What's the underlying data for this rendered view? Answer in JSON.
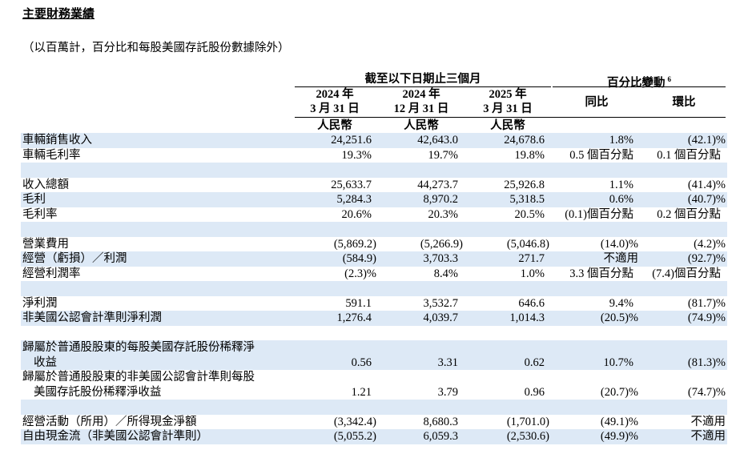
{
  "header": {
    "title": "主要財務業績",
    "subtitle": "（以百萬計，百分比和每股美國存託股份數據除外）"
  },
  "table": {
    "groups": [
      {
        "label": "截至以下日期止三個月"
      },
      {
        "label": "百分比變動",
        "note": "6"
      }
    ],
    "columns": [
      {
        "lines": [
          "2024 年",
          "3 月 31 日"
        ],
        "currency": "人民幣"
      },
      {
        "lines": [
          "2024 年",
          "12 月 31 日"
        ],
        "currency": "人民幣"
      },
      {
        "lines": [
          "2025 年",
          "3 月 31 日"
        ],
        "currency": "人民幣"
      },
      {
        "lines": [
          "同比"
        ]
      },
      {
        "lines": [
          "環比"
        ]
      }
    ],
    "sections": [
      [
        {
          "label": [
            "車輛銷售收入"
          ],
          "cells": [
            "24,251.6",
            "42,643.0",
            "24,678.6",
            "1.8%",
            "(42.1)%"
          ]
        },
        {
          "label": [
            "車輛毛利率"
          ],
          "cells": [
            "19.3%",
            "19.7%",
            "19.8%",
            "0.5 個百分點",
            "0.1 個百分點"
          ]
        }
      ],
      [
        {
          "label": [
            "收入總額"
          ],
          "cells": [
            "25,633.7",
            "44,273.7",
            "25,926.8",
            "1.1%",
            "(41.4)%"
          ]
        },
        {
          "label": [
            "毛利"
          ],
          "cells": [
            "5,284.3",
            "8,970.2",
            "5,318.5",
            "0.6%",
            "(40.7)%"
          ]
        },
        {
          "label": [
            "毛利率"
          ],
          "cells": [
            "20.6%",
            "20.3%",
            "20.5%",
            "(0.1)個百分點",
            "0.2 個百分點"
          ]
        }
      ],
      [
        {
          "label": [
            "營業費用"
          ],
          "cells": [
            "(5,869.2)",
            "(5,266.9)",
            "(5,046.8)",
            "(14.0)%",
            "(4.2)%"
          ]
        },
        {
          "label": [
            "經營（虧損）／利潤"
          ],
          "cells": [
            "(584.9)",
            "3,703.3",
            "271.7",
            "不適用",
            "(92.7)%"
          ]
        },
        {
          "label": [
            "經營利潤率"
          ],
          "cells": [
            "(2.3)%",
            "8.4%",
            "1.0%",
            "3.3 個百分點",
            "(7.4)個百分點"
          ]
        }
      ],
      [
        {
          "label": [
            "淨利潤"
          ],
          "cells": [
            "591.1",
            "3,532.7",
            "646.6",
            "9.4%",
            "(81.7)%"
          ]
        },
        {
          "label": [
            "非美國公認會計準則淨利潤"
          ],
          "cells": [
            "1,276.4",
            "4,039.7",
            "1,014.3",
            "(20.5)%",
            "(74.9)%"
          ]
        }
      ],
      [
        {
          "label": [
            "歸屬於普通股股東的每股美國存託股份稀釋淨",
            "收益"
          ],
          "cells": [
            "0.56",
            "3.31",
            "0.62",
            "10.7%",
            "(81.3)%"
          ]
        },
        {
          "label": [
            "歸屬於普通股股東的非美國公認會計準則每股",
            "美國存託股份稀釋淨收益"
          ],
          "cells": [
            "1.21",
            "3.79",
            "0.96",
            "(20.7)%",
            "(74.7)%"
          ]
        }
      ],
      [
        {
          "label": [
            "經營活動（所用）／所得現金淨額"
          ],
          "cells": [
            "(3,342.4)",
            "8,680.3",
            "(1,701.0)",
            "(49.1)%",
            "不適用"
          ]
        },
        {
          "label": [
            "自由現金流（非美國公認會計準則）"
          ],
          "cells": [
            "(5,055.2)",
            "6,059.3",
            "(2,530.6)",
            "(49.9)%",
            "不適用"
          ]
        }
      ]
    ]
  }
}
